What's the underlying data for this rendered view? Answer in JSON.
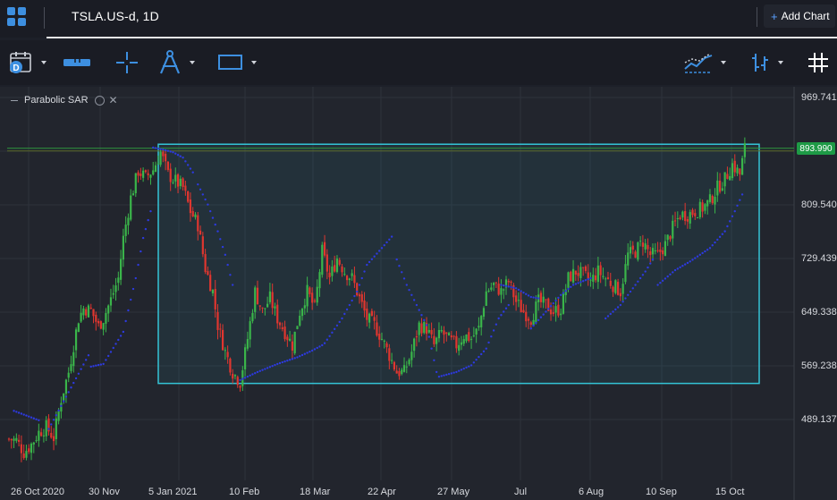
{
  "tab": {
    "title": "TSLA.US-d, 1D"
  },
  "add_chart": {
    "plus": "+",
    "label": "Add Chart"
  },
  "toolbar": {
    "icons": [
      "calendar-date-icon",
      "ruler-icon",
      "crosshair-icon",
      "compass-drawing-icon",
      "rectangle-icon",
      "line-chart-type-icon",
      "bars-chart-type-icon",
      "grid-toggle-icon"
    ],
    "calendar_badge": "D"
  },
  "indicator": {
    "label": "Parabolic SAR",
    "close": "✕"
  },
  "price_tag": {
    "value": "893.990",
    "color": "#1e9a46"
  },
  "colors": {
    "up": "#3ab54a",
    "down": "#e0362f",
    "sar": "#2d3adf",
    "rect": "#34c4d6",
    "accent": "#3d8fe0"
  },
  "chart_data": {
    "type": "candlestick",
    "y_ticks": [
      "969.741",
      "809.540",
      "729.439",
      "649.338",
      "569.238",
      "489.137"
    ],
    "x_ticks": [
      "26 Oct 2020",
      "30 Nov",
      "5 Jan 2021",
      "10 Feb",
      "18 Mar",
      "22 Apr",
      "27 May",
      "Jul",
      "6 Aug",
      "10 Sep",
      "15 Oct"
    ],
    "ylim": [
      438,
      1000
    ],
    "grid": true,
    "drawn_rectangle": {
      "x_from": "2020-12-31",
      "x_to": "2021-10-22",
      "y_from": 543,
      "y_to": 900
    },
    "horizontal_line": 893.99,
    "close_path": [
      [
        0,
        460
      ],
      [
        3,
        458
      ],
      [
        6,
        440
      ],
      [
        9,
        452
      ],
      [
        12,
        470
      ],
      [
        15,
        478
      ],
      [
        18,
        462
      ],
      [
        21,
        520
      ],
      [
        24,
        560
      ],
      [
        26,
        600
      ],
      [
        28,
        640
      ],
      [
        30,
        655
      ],
      [
        33,
        652
      ],
      [
        36,
        628
      ],
      [
        38,
        640
      ],
      [
        41,
        668
      ],
      [
        44,
        700
      ],
      [
        46,
        760
      ],
      [
        49,
        820
      ],
      [
        52,
        860
      ],
      [
        55,
        850
      ],
      [
        58,
        862
      ],
      [
        61,
        888
      ],
      [
        64,
        855
      ],
      [
        67,
        845
      ],
      [
        70,
        835
      ],
      [
        73,
        800
      ],
      [
        76,
        780
      ],
      [
        79,
        715
      ],
      [
        82,
        680
      ],
      [
        84,
        630
      ],
      [
        87,
        590
      ],
      [
        90,
        560
      ],
      [
        93,
        545
      ],
      [
        96,
        610
      ],
      [
        99,
        680
      ],
      [
        102,
        650
      ],
      [
        105,
        670
      ],
      [
        108,
        640
      ],
      [
        111,
        620
      ],
      [
        114,
        600
      ],
      [
        117,
        650
      ],
      [
        120,
        680
      ],
      [
        123,
        655
      ],
      [
        126,
        740
      ],
      [
        129,
        700
      ],
      [
        132,
        730
      ],
      [
        135,
        710
      ],
      [
        138,
        700
      ],
      [
        141,
        670
      ],
      [
        144,
        640
      ],
      [
        147,
        630
      ],
      [
        150,
        610
      ],
      [
        153,
        585
      ],
      [
        156,
        560
      ],
      [
        159,
        560
      ],
      [
        162,
        590
      ],
      [
        165,
        630
      ],
      [
        168,
        625
      ],
      [
        171,
        600
      ],
      [
        174,
        620
      ],
      [
        177,
        608
      ],
      [
        180,
        600
      ],
      [
        183,
        615
      ],
      [
        186,
        610
      ],
      [
        189,
        625
      ],
      [
        192,
        680
      ],
      [
        195,
        690
      ],
      [
        198,
        680
      ],
      [
        201,
        695
      ],
      [
        204,
        665
      ],
      [
        207,
        650
      ],
      [
        210,
        640
      ],
      [
        213,
        665
      ],
      [
        216,
        660
      ],
      [
        219,
        650
      ],
      [
        222,
        655
      ],
      [
        225,
        700
      ],
      [
        228,
        710
      ],
      [
        231,
        705
      ],
      [
        234,
        695
      ],
      [
        237,
        710
      ],
      [
        240,
        700
      ],
      [
        243,
        690
      ],
      [
        246,
        680
      ],
      [
        249,
        735
      ],
      [
        252,
        740
      ],
      [
        255,
        755
      ],
      [
        258,
        735
      ],
      [
        261,
        735
      ],
      [
        264,
        750
      ],
      [
        267,
        775
      ],
      [
        270,
        795
      ],
      [
        273,
        795
      ],
      [
        276,
        800
      ],
      [
        279,
        805
      ],
      [
        282,
        815
      ],
      [
        285,
        835
      ],
      [
        288,
        848
      ],
      [
        291,
        870
      ],
      [
        294,
        855
      ],
      [
        296,
        894
      ]
    ],
    "sar_segments": [
      [
        [
          2,
          502
        ],
        [
          12,
          488
        ]
      ],
      [
        [
          16,
          475
        ],
        [
          32,
          585
        ]
      ],
      [
        [
          33,
          568
        ],
        [
          38,
          572
        ],
        [
          46,
          620
        ],
        [
          51,
          700
        ],
        [
          54,
          760
        ],
        [
          57,
          800
        ]
      ],
      [
        [
          58,
          895
        ],
        [
          62,
          892
        ],
        [
          66,
          888
        ],
        [
          70,
          880
        ],
        [
          74,
          858
        ]
      ],
      [
        [
          76,
          840
        ],
        [
          80,
          810
        ],
        [
          84,
          770
        ],
        [
          87,
          735
        ],
        [
          90,
          690
        ]
      ],
      [
        [
          93,
          548
        ],
        [
          100,
          560
        ],
        [
          108,
          572
        ],
        [
          116,
          582
        ],
        [
          122,
          592
        ],
        [
          126,
          600
        ]
      ],
      [
        [
          127,
          603
        ],
        [
          134,
          640
        ],
        [
          140,
          680
        ],
        [
          144,
          720
        ],
        [
          150,
          745
        ],
        [
          154,
          762
        ]
      ],
      [
        [
          156,
          728
        ],
        [
          160,
          690
        ],
        [
          164,
          660
        ],
        [
          168,
          630
        ],
        [
          172,
          560
        ]
      ],
      [
        [
          173,
          553
        ],
        [
          180,
          560
        ],
        [
          186,
          570
        ],
        [
          192,
          595
        ],
        [
          197,
          640
        ],
        [
          201,
          660
        ]
      ],
      [
        [
          198,
          690
        ],
        [
          204,
          685
        ],
        [
          210,
          672
        ],
        [
          213,
          670
        ]
      ],
      [
        [
          210,
          625
        ],
        [
          216,
          650
        ],
        [
          222,
          675
        ],
        [
          227,
          690
        ],
        [
          234,
          700
        ]
      ],
      [
        [
          240,
          640
        ],
        [
          246,
          660
        ],
        [
          252,
          690
        ],
        [
          256,
          710
        ],
        [
          259,
          728
        ]
      ],
      [
        [
          261,
          690
        ],
        [
          268,
          712
        ],
        [
          274,
          725
        ],
        [
          282,
          745
        ],
        [
          288,
          770
        ],
        [
          292,
          800
        ],
        [
          295,
          825
        ]
      ]
    ]
  }
}
